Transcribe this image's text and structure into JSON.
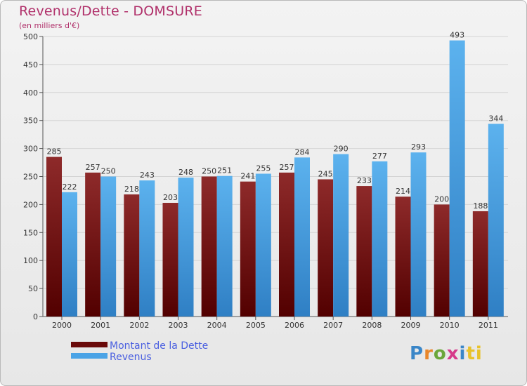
{
  "header": {
    "title": "Revenus/Dette - DOMSURE",
    "subtitle": "(en milliers d'€)"
  },
  "colors": {
    "series_dette": "#7a1010",
    "series_revenus": "#4aa3e6",
    "axis": "#555555",
    "grid": "#d4d4d4"
  },
  "legend": {
    "items": [
      {
        "label": "Montant de la Dette",
        "color": "#6a0a0a"
      },
      {
        "label": "Revenus",
        "color": "#4aa3e6"
      }
    ]
  },
  "logo": {
    "text": "Proxiti"
  },
  "chart_data": {
    "type": "bar",
    "title": "Revenus/Dette - DOMSURE",
    "subtitle": "(en milliers d'€)",
    "categories": [
      "2000",
      "2001",
      "2002",
      "2003",
      "2004",
      "2005",
      "2006",
      "2007",
      "2008",
      "2009",
      "2010",
      "2011"
    ],
    "series": [
      {
        "name": "Montant de la Dette",
        "values": [
          285,
          257,
          218,
          203,
          250,
          241,
          257,
          245,
          233,
          214,
          200,
          188
        ]
      },
      {
        "name": "Revenus",
        "values": [
          222,
          250,
          243,
          248,
          251,
          255,
          284,
          290,
          277,
          293,
          493,
          344
        ]
      }
    ],
    "ylim": [
      0,
      500
    ],
    "yticks": [
      0,
      50,
      100,
      150,
      200,
      250,
      300,
      350,
      400,
      450,
      500
    ],
    "grid": true,
    "legend_position": "bottom-left"
  }
}
